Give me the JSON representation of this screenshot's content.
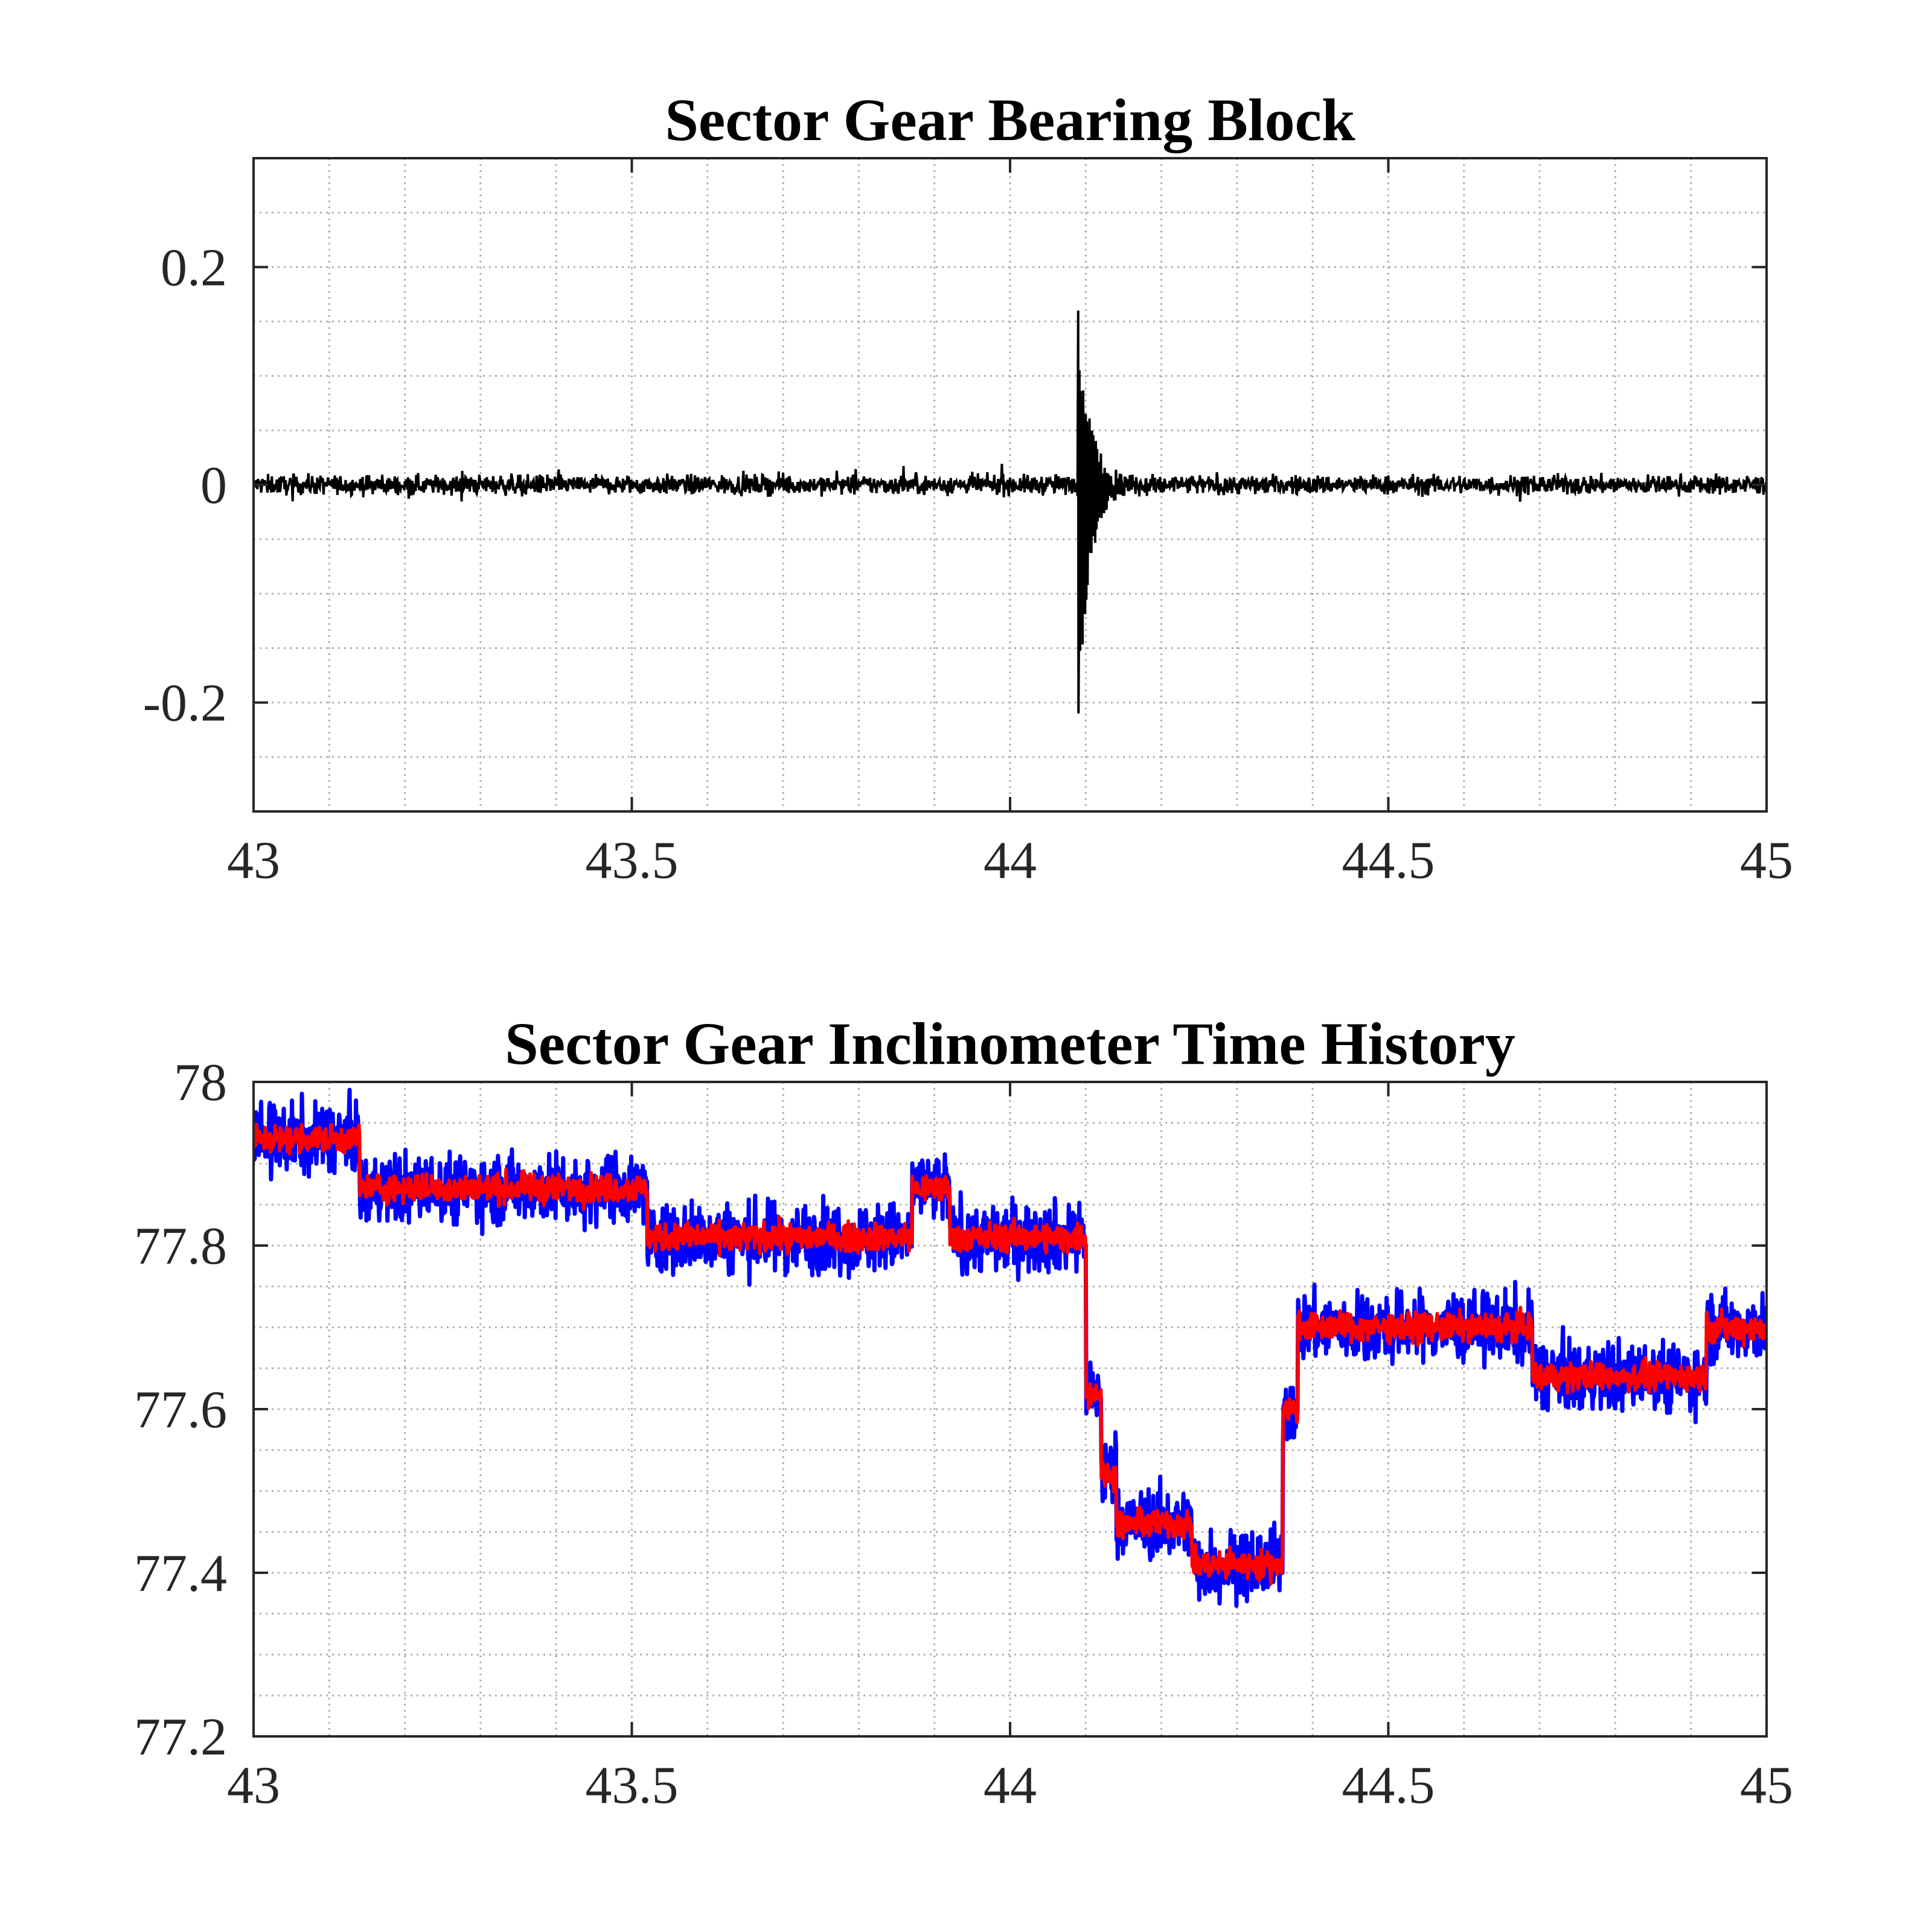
{
  "chart_data": [
    {
      "type": "line",
      "title": "Sector Gear Bearing Block",
      "xlabel": "",
      "ylabel": "",
      "xlim": [
        43,
        45
      ],
      "ylim": [
        -0.3,
        0.3
      ],
      "grid": "on (major + minor, dotted)",
      "xticks": [
        43,
        43.5,
        44,
        44.5,
        45
      ],
      "xtick_labels": [
        "43",
        "43.5",
        "44",
        "44.5",
        "45"
      ],
      "yticks": [
        -0.2,
        0,
        0.2
      ],
      "ytick_labels": [
        "-0.2",
        "0",
        "0.2"
      ],
      "series": [
        {
          "color": "#000000",
          "baseline": 0,
          "noise_amplitude": 0.008,
          "impulse": {
            "x": 44.09,
            "max": 0.16,
            "min": -0.21,
            "decay_until": 44.16
          }
        }
      ]
    },
    {
      "type": "line",
      "title": "Sector Gear Inclinometer Time History",
      "xlabel": "",
      "ylabel": "",
      "xlim": [
        43,
        45
      ],
      "ylim": [
        77.2,
        78
      ],
      "grid": "on (major + minor, dotted)",
      "xticks": [
        43,
        43.5,
        44,
        44.5,
        45
      ],
      "xtick_labels": [
        "43",
        "43.5",
        "44",
        "44.5",
        "45"
      ],
      "yticks": [
        77.2,
        77.4,
        77.6,
        77.8,
        78
      ],
      "ytick_labels": [
        "77.2",
        "77.4",
        "77.6",
        "77.8",
        "78"
      ],
      "levels": [
        {
          "x": [
            43.0,
            43.14
          ],
          "y": 77.93
        },
        {
          "x": [
            43.14,
            43.52
          ],
          "y": 77.87
        },
        {
          "x": [
            43.52,
            43.87
          ],
          "y": 77.81
        },
        {
          "x": [
            43.87,
            43.92
          ],
          "y": 77.87
        },
        {
          "x": [
            43.92,
            44.1
          ],
          "y": 77.81
        },
        {
          "x": [
            44.1,
            44.12
          ],
          "y": 77.62
        },
        {
          "x": [
            44.12,
            44.14
          ],
          "y": 77.52
        },
        {
          "x": [
            44.14,
            44.24
          ],
          "y": 77.46
        },
        {
          "x": [
            44.24,
            44.36
          ],
          "y": 77.41
        },
        {
          "x": [
            44.36,
            44.38
          ],
          "y": 77.6
        },
        {
          "x": [
            44.38,
            44.69
          ],
          "y": 77.7
        },
        {
          "x": [
            44.69,
            44.92
          ],
          "y": 77.64
        },
        {
          "x": [
            44.92,
            45.0
          ],
          "y": 77.7
        }
      ],
      "series": [
        {
          "color": "#0000ff",
          "noise_amplitude": 0.035
        },
        {
          "color": "#ff0000",
          "noise_amplitude": 0.014
        }
      ]
    }
  ]
}
